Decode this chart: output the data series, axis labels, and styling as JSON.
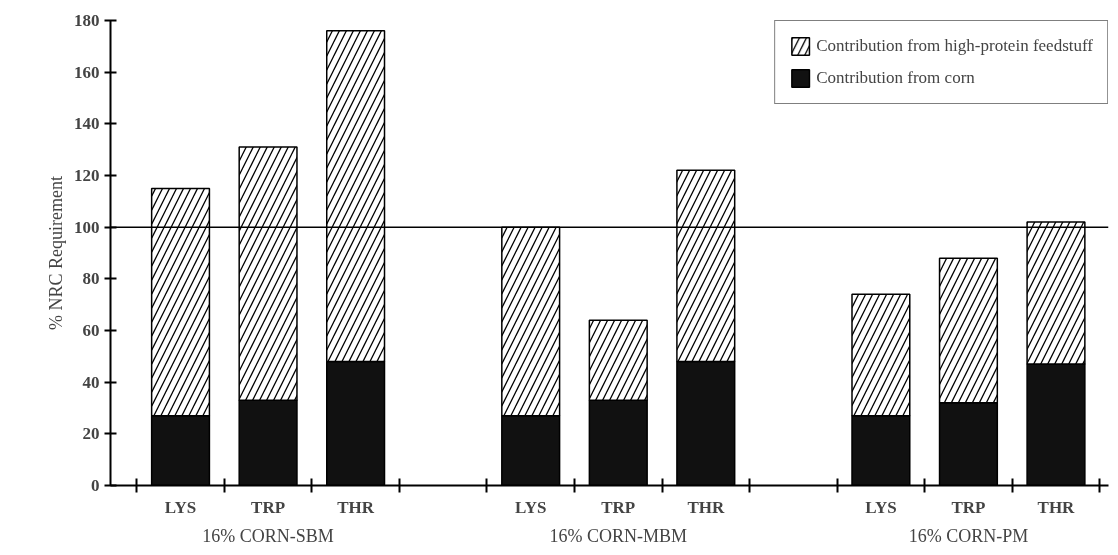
{
  "chart_data": {
    "type": "bar",
    "stacked": true,
    "ylabel": "% NRC Requirement",
    "categories": [
      "LYS",
      "TRP",
      "THR",
      null,
      "LYS",
      "TRP",
      "THR",
      null,
      "LYS",
      "TRP",
      "THR"
    ],
    "series": [
      {
        "name": "Contribution from corn",
        "color": "#111111",
        "values": [
          27,
          33,
          48,
          null,
          27,
          33,
          48,
          null,
          27,
          32,
          47
        ]
      },
      {
        "name": "Contribution from high-protein feedstuff",
        "color": "#ffffff",
        "values": [
          88,
          98,
          128,
          null,
          73,
          31,
          74,
          null,
          47,
          56,
          55
        ]
      }
    ],
    "ylim": [
      0,
      180
    ],
    "yticks": [
      0,
      20,
      40,
      60,
      80,
      100,
      120,
      140,
      160,
      180
    ],
    "ref_lines": [
      {
        "axis": "y",
        "value": 100,
        "color": "#000000"
      }
    ],
    "annotations": [
      "16% CORN-SBM",
      "16% CORN-MBM",
      "16% CORN-PM"
    ],
    "legend": "top right",
    "grid": false
  }
}
